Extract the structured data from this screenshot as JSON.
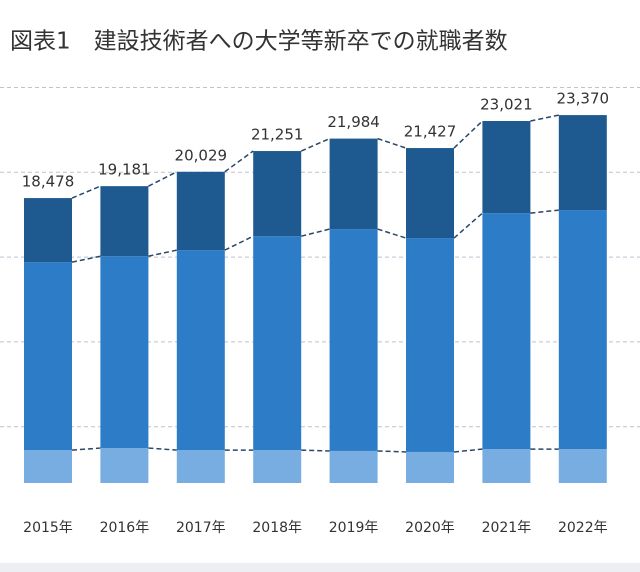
{
  "chart_data": {
    "type": "stacked-bar",
    "title": "図表1　建設技術者への大学等新卒での就職者数",
    "categories": [
      "2015年",
      "2016年",
      "2017年",
      "2018年",
      "2019年",
      "2020年",
      "2021年",
      "2022年"
    ],
    "series": [
      {
        "color": "#78ade1",
        "values": [
          3620,
          3740,
          3620,
          3620,
          3570,
          3510,
          3680,
          3680
        ]
      },
      {
        "color": "#2d7cc7",
        "values": [
          11080,
          11310,
          11790,
          12610,
          13080,
          12610,
          13910,
          14090
        ]
      },
      {
        "color": "#1e5a8f",
        "values": [
          3778,
          4131,
          4619,
          5021,
          5334,
          5307,
          5431,
          5600
        ]
      }
    ],
    "totals": [
      18478,
      19181,
      20029,
      21251,
      21984,
      21427,
      23021,
      23370
    ],
    "total_labels": [
      "18,478",
      "19,181",
      "20,029",
      "21,251",
      "21,984",
      "21,427",
      "23,021",
      "23,370"
    ],
    "ylim": [
      0,
      26500
    ],
    "yticks": [
      5000,
      10000,
      15000,
      20000,
      25000
    ],
    "grid": true
  }
}
